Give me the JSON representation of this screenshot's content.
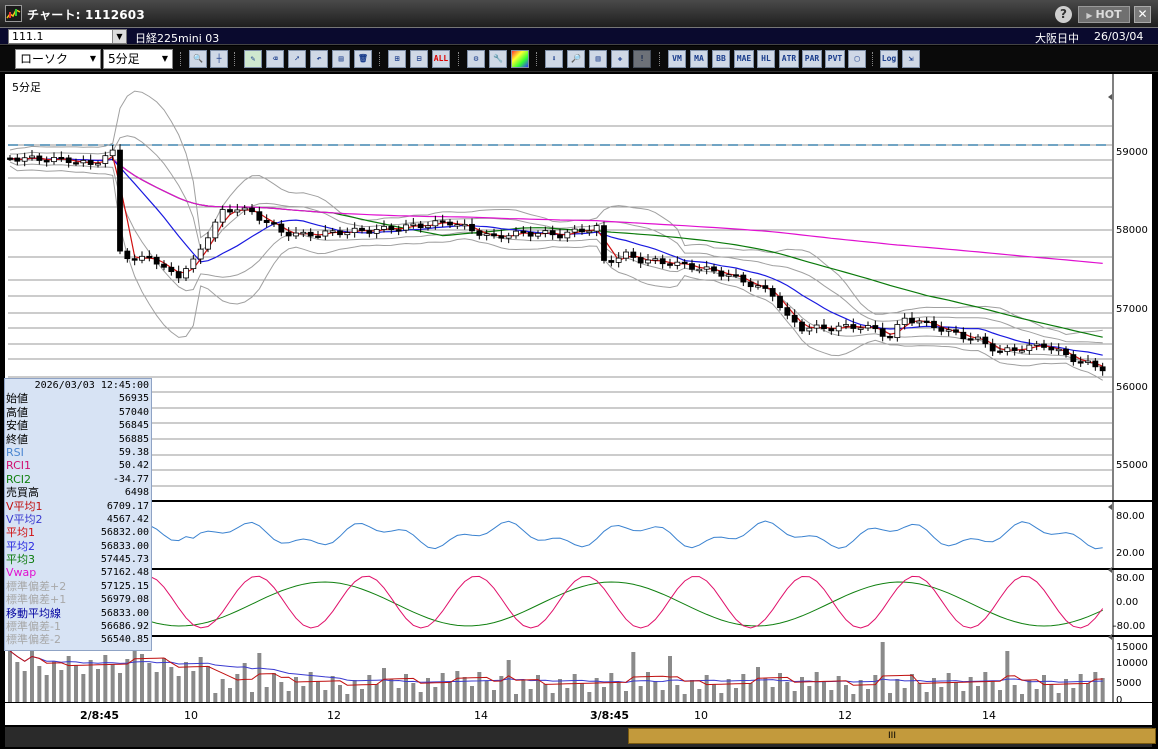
{
  "window": {
    "title": "チャート: 1112603",
    "hot_label": "HOT",
    "help_label": "?",
    "close_label": "✕"
  },
  "symbol_bar": {
    "code": "111.1",
    "name": "日経225mini 03",
    "session": "大阪日中",
    "date": "26/03/04"
  },
  "toolbar": {
    "chart_type": "ローソク",
    "timeframe": "5分足",
    "buttons": [
      "zoom-icon",
      "crosshair-icon",
      "pen-icon",
      "eraser-icon",
      "cursor-icon",
      "undo-icon",
      "note-icon",
      "trash-icon",
      "grid-icon",
      "grid2-icon",
      "ALL",
      "tools-icon",
      "wrench-icon",
      "color-icon",
      "download-icon",
      "search-icon",
      "chart-icon",
      "compare-icon",
      "warning-icon",
      "VMA",
      "MA",
      "BB",
      "MAE",
      "HL",
      "ATR",
      "PAR",
      "PVT",
      "box-icon",
      "Log",
      "export-icon"
    ],
    "text_buttons": {
      "all": "ALL",
      "vma": "VM",
      "ma": "MA",
      "bb": "BB",
      "mae": "MAE",
      "hl": "HL",
      "atr": "ATR",
      "par": "PAR",
      "pvt": "PVT",
      "log": "Log"
    }
  },
  "chart": {
    "timeframe_label": "5分足",
    "price_ticks": [
      "59000",
      "58000",
      "57000",
      "56000",
      "55000"
    ],
    "rsi_ticks": [
      "80.00",
      "20.00"
    ],
    "rci_ticks": [
      "80.00",
      "0.00",
      "-80.00"
    ],
    "volume_ticks": [
      "15000",
      "10000",
      "5000",
      "0"
    ],
    "time_labels": [
      "2/8:45",
      "10",
      "12",
      "14",
      "3/8:45",
      "10",
      "12",
      "14"
    ],
    "scroll_grip": "III",
    "colors": {
      "ma1": "#d01010",
      "ma2": "#1a1ae0",
      "ma3": "#0a7a0a",
      "vwap": "#e010d0",
      "bands": "#a0a0a0",
      "rsi": "#3a82d0",
      "rci1": "#e0106a",
      "rci2": "#108010",
      "dashed": "#1a6ea0"
    }
  },
  "data_window": {
    "datetime": "2026/03/03  12:45:00",
    "rows": [
      {
        "k": "始値",
        "v": "56935",
        "c": "#000"
      },
      {
        "k": "高値",
        "v": "57040",
        "c": "#000"
      },
      {
        "k": "安値",
        "v": "56845",
        "c": "#000"
      },
      {
        "k": "終値",
        "v": "56885",
        "c": "#000"
      },
      {
        "k": "RSI",
        "v": "59.38",
        "c": "#4a86d0"
      },
      {
        "k": "RCI1",
        "v": "50.42",
        "c": "#d01070"
      },
      {
        "k": "RCI2",
        "v": "-34.77",
        "c": "#108010"
      },
      {
        "k": "売買高",
        "v": "6498",
        "c": "#000"
      },
      {
        "k": "V平均1",
        "v": "6709.17",
        "c": "#c01010"
      },
      {
        "k": "V平均2",
        "v": "4567.42",
        "c": "#3a3ad0"
      },
      {
        "k": "平均1",
        "v": "56832.00",
        "c": "#d01010"
      },
      {
        "k": "平均2",
        "v": "56833.00",
        "c": "#2a2ae0"
      },
      {
        "k": "平均3",
        "v": "57445.73",
        "c": "#0a7a0a"
      },
      {
        "k": "Vwap",
        "v": "57162.48",
        "c": "#e010d0"
      },
      {
        "k": "標準偏差+2",
        "v": "57125.15",
        "c": "#a8a8a8"
      },
      {
        "k": "標準偏差+1",
        "v": "56979.08",
        "c": "#a8a8a8"
      },
      {
        "k": "移動平均線",
        "v": "56833.00",
        "c": "#0000a0"
      },
      {
        "k": "標準偏差-1",
        "v": "56686.92",
        "c": "#a8a8a8"
      },
      {
        "k": "標準偏差-2",
        "v": "56540.85",
        "c": "#a8a8a8"
      }
    ]
  }
}
